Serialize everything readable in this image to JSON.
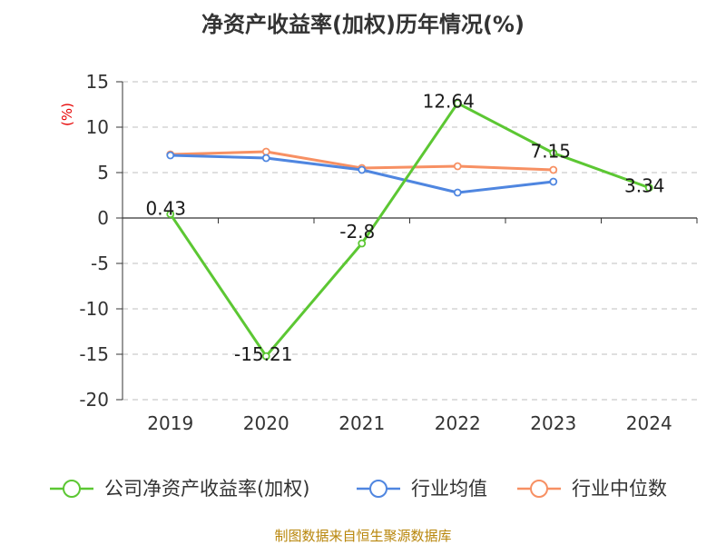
{
  "chart_data": {
    "type": "line",
    "title": "净资产收益率(加权)历年情况(%)",
    "unit": "(%)",
    "categories": [
      "2019",
      "2020",
      "2021",
      "2022",
      "2023",
      "2024"
    ],
    "ylim": [
      -20,
      15
    ],
    "yticks": [
      15,
      10,
      5,
      0,
      -5,
      -10,
      -15,
      -20
    ],
    "grid": true,
    "legend_position": "bottom",
    "series": [
      {
        "name": "公司净资产收益率(加权)",
        "color": "#5cc733",
        "values": [
          0.43,
          -15.21,
          -2.8,
          12.64,
          7.15,
          3.34
        ],
        "labels": [
          "0.43",
          "-15.21",
          "-2.8",
          "12.64",
          "7.15",
          "3.34"
        ]
      },
      {
        "name": "行业均值",
        "color": "#4f86e0",
        "values": [
          6.9,
          6.6,
          5.3,
          2.8,
          4.0,
          null
        ]
      },
      {
        "name": "行业中位数",
        "color": "#f79063",
        "values": [
          7.0,
          7.3,
          5.5,
          5.7,
          5.3,
          null
        ]
      }
    ]
  },
  "source": "制图数据来自恒生聚源数据库"
}
